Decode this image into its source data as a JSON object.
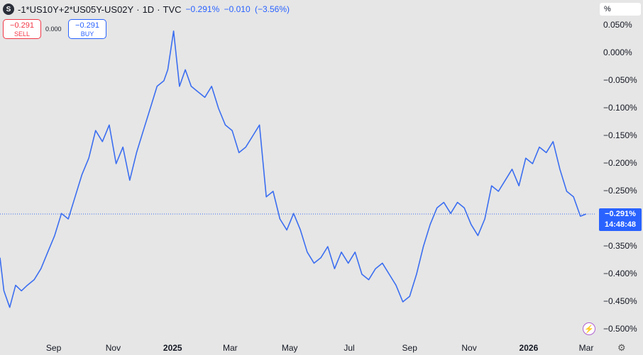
{
  "header": {
    "icon_letter": "S",
    "symbol": "-1*US10Y+2*US05Y-US02Y",
    "interval": "1D",
    "source": "TVC",
    "sep": "·",
    "last": "−0.291%",
    "change": "−0.010",
    "change_pct": "(−3.56%)"
  },
  "trade": {
    "sell_value": "−0.291",
    "sell_label": "SELL",
    "spread": "0.000",
    "buy_value": "−0.291",
    "buy_label": "BUY"
  },
  "scale_mode": "%",
  "price_tag": {
    "value": "−0.291%",
    "countdown": "14:48:48"
  },
  "colors": {
    "line": "#3b6ef0",
    "background": "#e6e6e6",
    "tag": "#2962ff"
  },
  "icons": [
    "bolt-icon",
    "gear-icon"
  ],
  "chart_data": {
    "type": "line",
    "title": "-1*US10Y+2*US05Y-US02Y · 1D · TVC",
    "ylim": [
      -0.5,
      0.05
    ],
    "y_ticks": [
      0.05,
      0.0,
      -0.05,
      -0.1,
      -0.15,
      -0.2,
      -0.25,
      -0.35,
      -0.4,
      -0.45,
      -0.5
    ],
    "y_tick_labels": [
      "0.050%",
      "0.000%",
      "−0.050%",
      "−0.100%",
      "−0.150%",
      "−0.200%",
      "−0.250%",
      "−0.350%",
      "−0.400%",
      "−0.450%",
      "−0.500%"
    ],
    "x_tick_labels": [
      "Sep",
      "Nov",
      "2025",
      "Mar",
      "May",
      "Jul",
      "Sep",
      "Nov",
      "2026",
      "Mar"
    ],
    "x_tick_dates": [
      "2024-09-01",
      "2024-11-01",
      "2025-01-01",
      "2025-03-01",
      "2025-05-01",
      "2025-07-01",
      "2025-09-01",
      "2025-11-01",
      "2026-01-01",
      "2026-03-01"
    ],
    "current_value": -0.291,
    "grid": false,
    "series": [
      {
        "x": [
          "2024-07-08",
          "2024-07-12",
          "2024-07-18",
          "2024-07-24",
          "2024-07-30",
          "2024-08-05",
          "2024-08-12",
          "2024-08-19",
          "2024-08-26",
          "2024-09-02",
          "2024-09-09",
          "2024-09-16",
          "2024-09-23",
          "2024-09-30",
          "2024-10-07",
          "2024-10-14",
          "2024-10-21",
          "2024-10-28",
          "2024-11-04",
          "2024-11-11",
          "2024-11-18",
          "2024-11-25",
          "2024-12-02",
          "2024-12-09",
          "2024-12-16",
          "2024-12-23",
          "2024-12-27",
          "2025-01-02",
          "2025-01-08",
          "2025-01-14",
          "2025-01-20",
          "2025-01-27",
          "2025-02-03",
          "2025-02-10",
          "2025-02-17",
          "2025-02-24",
          "2025-03-03",
          "2025-03-10",
          "2025-03-17",
          "2025-03-24",
          "2025-03-31",
          "2025-04-07",
          "2025-04-14",
          "2025-04-21",
          "2025-04-28",
          "2025-05-05",
          "2025-05-12",
          "2025-05-19",
          "2025-05-26",
          "2025-06-02",
          "2025-06-09",
          "2025-06-16",
          "2025-06-23",
          "2025-06-30",
          "2025-07-07",
          "2025-07-14",
          "2025-07-21",
          "2025-07-28",
          "2025-08-04",
          "2025-08-11",
          "2025-08-18",
          "2025-08-25",
          "2025-09-01",
          "2025-09-08",
          "2025-09-15",
          "2025-09-22",
          "2025-09-29",
          "2025-10-06",
          "2025-10-13",
          "2025-10-20",
          "2025-10-27",
          "2025-11-03",
          "2025-11-10",
          "2025-11-17",
          "2025-11-24",
          "2025-12-01",
          "2025-12-08",
          "2025-12-15",
          "2025-12-22",
          "2025-12-29",
          "2026-01-05",
          "2026-01-12",
          "2026-01-19",
          "2026-01-26",
          "2026-02-02",
          "2026-02-09",
          "2026-02-16",
          "2026-02-23",
          "2026-03-01"
        ],
        "values": [
          -0.37,
          -0.43,
          -0.46,
          -0.42,
          -0.43,
          -0.42,
          -0.41,
          -0.39,
          -0.36,
          -0.33,
          -0.29,
          -0.3,
          -0.26,
          -0.22,
          -0.19,
          -0.14,
          -0.16,
          -0.13,
          -0.2,
          -0.17,
          -0.23,
          -0.18,
          -0.14,
          -0.1,
          -0.06,
          -0.05,
          -0.03,
          0.04,
          -0.06,
          -0.03,
          -0.06,
          -0.07,
          -0.08,
          -0.06,
          -0.1,
          -0.13,
          -0.14,
          -0.18,
          -0.17,
          -0.15,
          -0.13,
          -0.26,
          -0.25,
          -0.3,
          -0.32,
          -0.29,
          -0.32,
          -0.36,
          -0.38,
          -0.37,
          -0.35,
          -0.39,
          -0.36,
          -0.38,
          -0.36,
          -0.4,
          -0.41,
          -0.39,
          -0.38,
          -0.4,
          -0.42,
          -0.45,
          -0.44,
          -0.4,
          -0.35,
          -0.31,
          -0.28,
          -0.27,
          -0.29,
          -0.27,
          -0.28,
          -0.31,
          -0.33,
          -0.3,
          -0.24,
          -0.25,
          -0.23,
          -0.21,
          -0.24,
          -0.19,
          -0.2,
          -0.17,
          -0.18,
          -0.16,
          -0.21,
          -0.25,
          -0.26,
          -0.295,
          -0.291
        ]
      }
    ]
  }
}
